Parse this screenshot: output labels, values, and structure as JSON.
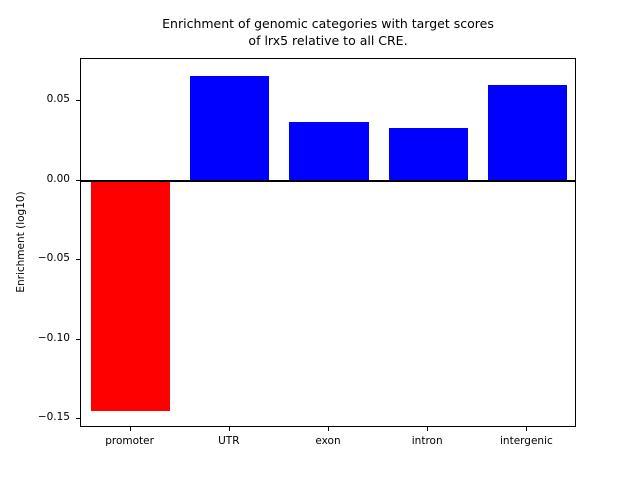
{
  "chart_data": {
    "type": "bar",
    "title": "Enrichment of genomic categories with target scores\nof lrx5 relative to all CRE.",
    "xlabel": "",
    "ylabel": "Enrichment (log10)",
    "categories": [
      "promoter",
      "UTR",
      "exon",
      "intron",
      "intergenic"
    ],
    "values": [
      -0.145,
      0.066,
      0.037,
      0.033,
      0.06
    ],
    "bar_colors": [
      "#ff0000",
      "#0000ff",
      "#0000ff",
      "#0000ff",
      "#0000ff"
    ],
    "ylim": [
      -0.1556,
      0.0766
    ],
    "yticks": [
      0.05,
      0.0,
      -0.05,
      -0.1,
      -0.15
    ],
    "ytick_labels": [
      "0.05",
      "0.00",
      "−0.05",
      "−0.10",
      "−0.15"
    ],
    "grid": false,
    "legend": "none",
    "zero_line": true,
    "bar_width_fraction": 0.16,
    "axis_color": "#000000",
    "background_color": "#ffffff"
  }
}
